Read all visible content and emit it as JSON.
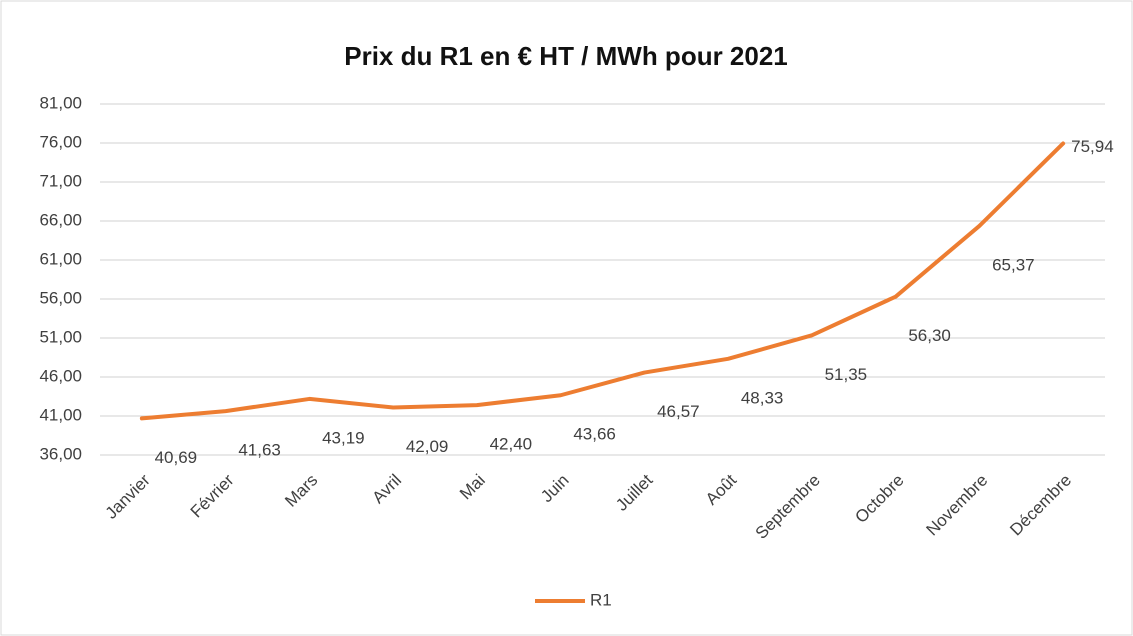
{
  "chart_data": {
    "type": "line",
    "title": "Prix du R1 en € HT / MWh pour 2021",
    "categories": [
      "Janvier",
      "Février",
      "Mars",
      "Avril",
      "Mai",
      "Juin",
      "Juillet",
      "Août",
      "Septembre",
      "Octobre",
      "Novembre",
      "Décembre"
    ],
    "series": [
      {
        "name": "R1",
        "color": "#ed7d31",
        "values": [
          40.69,
          41.63,
          43.19,
          42.09,
          42.4,
          43.66,
          46.57,
          48.33,
          51.35,
          56.3,
          65.37,
          75.94
        ],
        "value_labels": [
          "40,69",
          "41,63",
          "43,19",
          "42,09",
          "42,40",
          "43,66",
          "46,57",
          "48,33",
          "51,35",
          "56,30",
          "65,37",
          "75,94"
        ]
      }
    ],
    "ylim": [
      36,
      81
    ],
    "yticks": [
      {
        "value": 36,
        "label": "36,00"
      },
      {
        "value": 41,
        "label": "41,00"
      },
      {
        "value": 46,
        "label": "46,00"
      },
      {
        "value": 51,
        "label": "51,00"
      },
      {
        "value": 56,
        "label": "56,00"
      },
      {
        "value": 61,
        "label": "61,00"
      },
      {
        "value": 66,
        "label": "66,00"
      },
      {
        "value": 71,
        "label": "71,00"
      },
      {
        "value": 76,
        "label": "76,00"
      },
      {
        "value": 81,
        "label": "81,00"
      }
    ],
    "grid": true,
    "legend": "bottom"
  }
}
